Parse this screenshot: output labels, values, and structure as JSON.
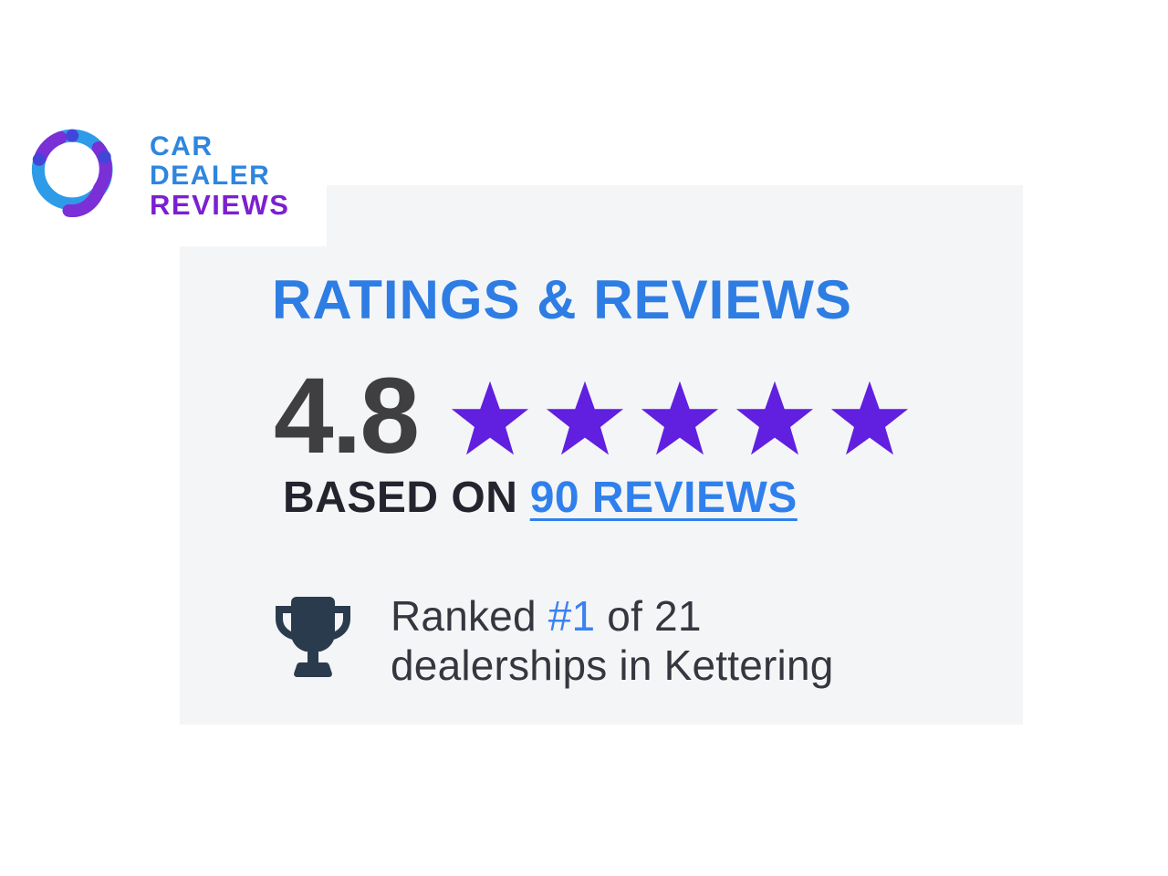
{
  "logo": {
    "alt": "Car Dealer Reviews",
    "line1": "CAR",
    "line2": "DEALER",
    "line3": "REVIEWS"
  },
  "ratings_panel": {
    "heading": "RATINGS & REVIEWS",
    "rating_value": "4.8",
    "stars": 5,
    "based_on_label": "BASED ON",
    "reviews_link": "90 REVIEWS",
    "ranking": {
      "prefix": "Ranked ",
      "rank": "#1",
      "suffix": " of 21",
      "line2": "dealerships in Kettering"
    }
  },
  "icons": {
    "star": "filled-star",
    "trophy": "trophy-cup",
    "logo_mark": "ring-with-tail"
  },
  "colors": {
    "panel-bg": "#f4f5f6",
    "heading-blue": "#2e7de4",
    "link-blue": "#2f80ed",
    "rank-blue": "#3b82f0",
    "star-purple": "#611fe0",
    "rating-dark": "#3f3e41",
    "dark-text": "#23242e",
    "ranked-text": "#35363f",
    "trophy-dark": "#2b3b4e",
    "logo-blue": "#2e86de",
    "logo-purple": "#7c1fd1",
    "ring-blue": "#2e9be8",
    "ring-purple": "#7b2fd6",
    "ring-dot": "#4146d8"
  }
}
